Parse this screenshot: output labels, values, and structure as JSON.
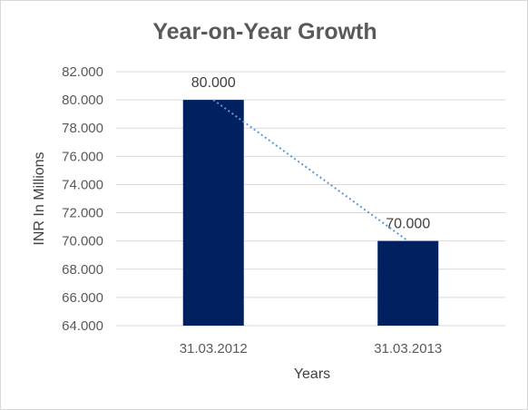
{
  "chart_data": {
    "type": "bar",
    "title": "Year-on-Year Growth",
    "xlabel": "Years",
    "ylabel": "INR In Millions",
    "categories": [
      "31.03.2012",
      "31.03.2013"
    ],
    "values": [
      80.0,
      70.0
    ],
    "data_labels": [
      "80.000",
      "70.000"
    ],
    "ylim": [
      64,
      82
    ],
    "y_ticks": [
      64,
      66,
      68,
      70,
      72,
      74,
      76,
      78,
      80,
      82
    ],
    "y_tick_labels": [
      "64.000",
      "66.000",
      "68.000",
      "70.000",
      "72.000",
      "74.000",
      "76.000",
      "78.000",
      "80.000",
      "82.000"
    ],
    "trendline": "linear",
    "grid": true,
    "legend": "none",
    "colors": {
      "bar": "#002060",
      "trendline": "#5b9bd5"
    }
  }
}
